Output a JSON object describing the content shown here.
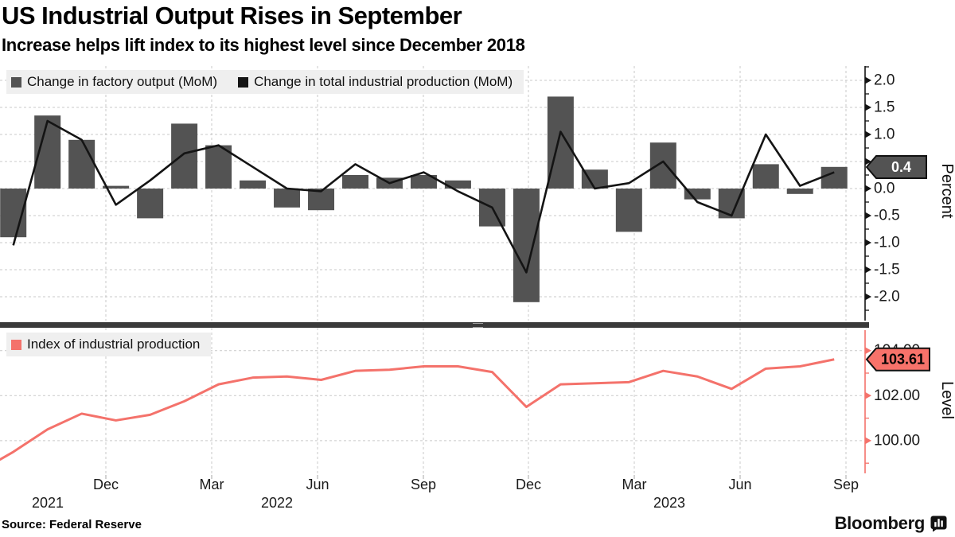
{
  "header": {
    "title": "US Industrial Output Rises in September",
    "subtitle": "Increase helps lift index to its highest level since December 2018"
  },
  "source": "Source:  Federal Reserve",
  "brand": {
    "name": "Bloomberg"
  },
  "x_axis": {
    "quarter_labels": [
      "Dec",
      "Mar",
      "Jun",
      "Sep",
      "Dec",
      "Mar",
      "Jun",
      "Sep"
    ],
    "year_labels": [
      "2021",
      "2022",
      "2023"
    ]
  },
  "chart_data": [
    {
      "type": "bar",
      "panel": "top",
      "title": "",
      "xlabel": "",
      "ylabel": "Percent",
      "ylim": [
        -2.4,
        2.27
      ],
      "yticks": [
        "2.0",
        "1.5",
        "1.0",
        "0.5",
        "0.0",
        "-0.5",
        "-1.0",
        "-1.5",
        "-2.0"
      ],
      "ytick_values": [
        2,
        1.5,
        1,
        0.5,
        0,
        -0.5,
        -1,
        -1.5,
        -2
      ],
      "grid": true,
      "legend_position": "top-left",
      "categories": [
        "Sep 2021",
        "Oct 2021",
        "Nov 2021",
        "Dec 2021",
        "Jan 2022",
        "Feb 2022",
        "Mar 2022",
        "Apr 2022",
        "May 2022",
        "Jun 2022",
        "Jul 2022",
        "Aug 2022",
        "Sep 2022",
        "Oct 2022",
        "Nov 2022",
        "Dec 2022",
        "Jan 2023",
        "Feb 2023",
        "Mar 2023",
        "Apr 2023",
        "May 2023",
        "Jun 2023",
        "Jul 2023",
        "Aug 2023",
        "Sep 2023"
      ],
      "series": [
        {
          "name": "Change in factory output (MoM)",
          "type": "bar",
          "color": "#535353",
          "values": [
            -0.9,
            1.35,
            0.9,
            0.05,
            -0.55,
            1.2,
            0.8,
            0.15,
            -0.35,
            -0.4,
            0.25,
            0.2,
            0.25,
            0.15,
            -0.7,
            -2.1,
            1.7,
            0.35,
            -0.8,
            0.85,
            -0.2,
            -0.55,
            0.45,
            -0.1,
            0.4
          ]
        },
        {
          "name": "Change in total industrial production (MoM)",
          "type": "line",
          "color": "#141414",
          "values": [
            -1.05,
            1.25,
            0.9,
            -0.3,
            0.15,
            0.65,
            0.8,
            0.4,
            0.0,
            -0.05,
            0.45,
            0.1,
            0.3,
            -0.05,
            -0.35,
            -1.55,
            1.05,
            0.0,
            0.1,
            0.5,
            -0.25,
            -0.5,
            1.0,
            0.05,
            0.3
          ]
        }
      ],
      "end_label": {
        "text": "0.4",
        "fill": "#535353",
        "text_color": "#ffffff"
      }
    },
    {
      "type": "line",
      "panel": "bottom",
      "title": "",
      "xlabel": "",
      "ylabel": "Level",
      "ylim": [
        98.5,
        105.0
      ],
      "yticks": [
        "104.00",
        "102.00",
        "100.00"
      ],
      "ytick_values": [
        104,
        102,
        100
      ],
      "grid": true,
      "legend_position": "top-left",
      "categories": [
        "Sep 2021",
        "Oct 2021",
        "Nov 2021",
        "Dec 2021",
        "Jan 2022",
        "Feb 2022",
        "Mar 2022",
        "Apr 2022",
        "May 2022",
        "Jun 2022",
        "Jul 2022",
        "Aug 2022",
        "Sep 2022",
        "Oct 2022",
        "Nov 2022",
        "Dec 2022",
        "Jan 2023",
        "Feb 2023",
        "Mar 2023",
        "Apr 2023",
        "May 2023",
        "Jun 2023",
        "Jul 2023",
        "Aug 2023",
        "Sep 2023"
      ],
      "series": [
        {
          "name": "Index of industrial production",
          "type": "line",
          "color": "#f4726b",
          "values": [
            99.5,
            100.5,
            101.2,
            100.9,
            101.15,
            101.75,
            102.5,
            102.8,
            102.85,
            102.7,
            103.1,
            103.15,
            103.3,
            103.3,
            103.05,
            101.5,
            102.5,
            102.55,
            102.6,
            103.1,
            102.85,
            102.3,
            103.2,
            103.3,
            103.61
          ]
        }
      ],
      "end_label": {
        "text": "103.61",
        "fill": "#f8726a",
        "text_color": "#000000"
      }
    }
  ]
}
